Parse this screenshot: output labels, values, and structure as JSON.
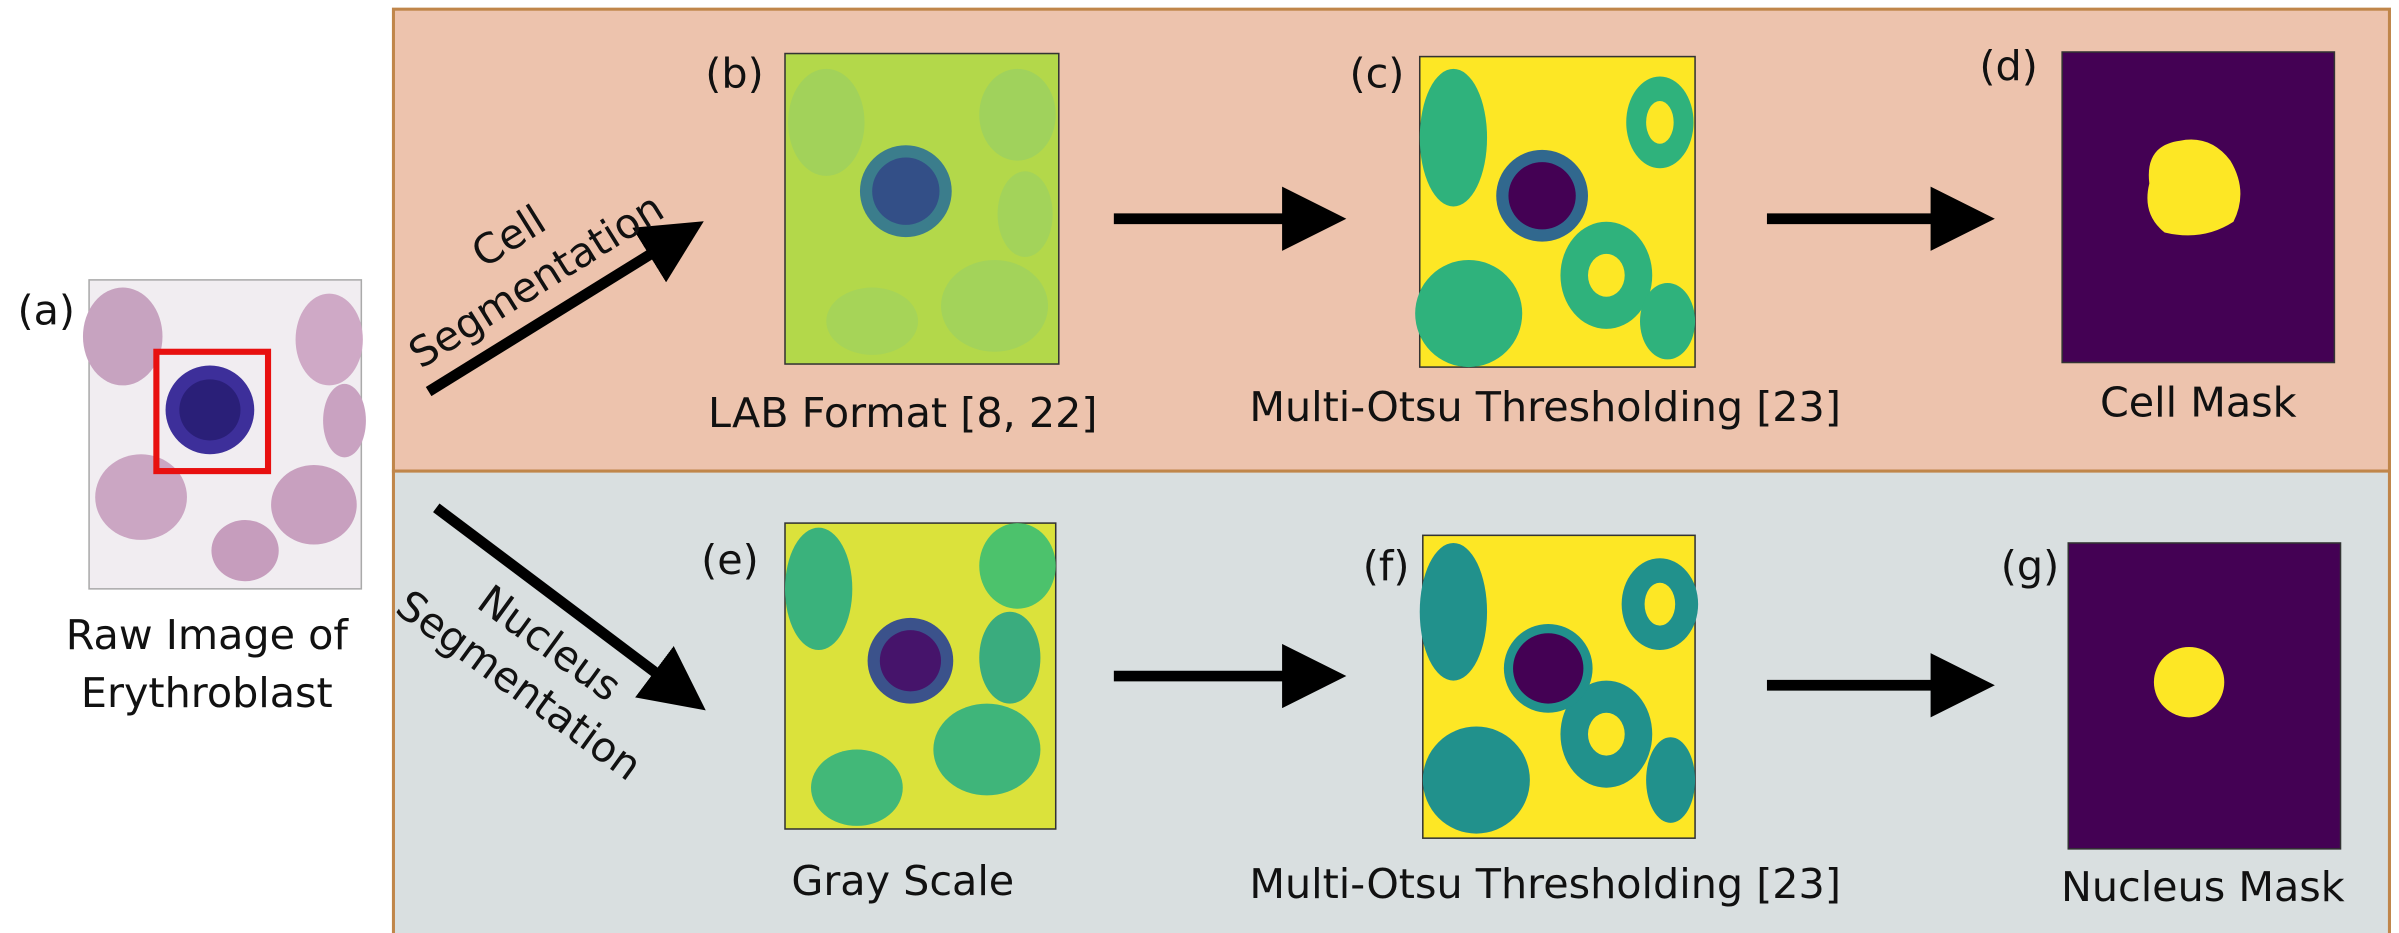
{
  "labels": {
    "a": "(a)",
    "b": "(b)",
    "c": "(c)",
    "d": "(d)",
    "e": "(e)",
    "f": "(f)",
    "g": "(g)"
  },
  "raw_image": {
    "caption": [
      "Raw Image of",
      "Erythroblast"
    ]
  },
  "cell_branch": {
    "arrow_label": [
      "Cell",
      "Segmentation"
    ],
    "captions": [
      "LAB Format [8, 22]",
      "Multi-Otsu Thresholding [23]",
      "Cell Mask"
    ]
  },
  "nucleus_branch": {
    "arrow_label": [
      "Nucleus",
      "Segmentation"
    ],
    "captions": [
      "Gray Scale",
      "Multi-Otsu Thresholding [23]",
      "Nucleus Mask"
    ]
  }
}
